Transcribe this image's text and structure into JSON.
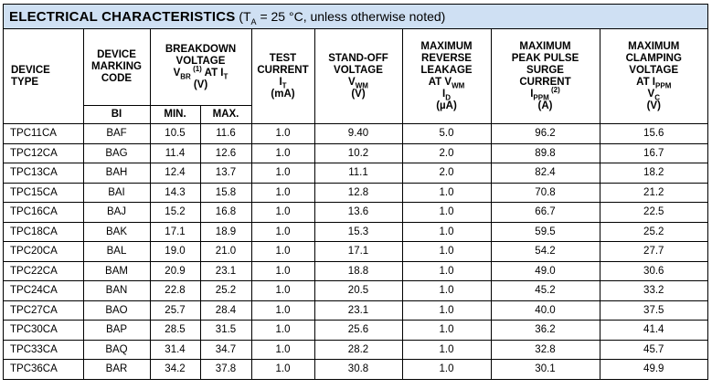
{
  "title": {
    "main": "ELECTRICAL CHARACTERISTICS",
    "condition_open": " (T",
    "condition_sub": "A",
    "condition_rest": " = 25 °C, unless otherwise noted)"
  },
  "headers": {
    "device_type": [
      "DEVICE",
      "TYPE"
    ],
    "marking_code": [
      "DEVICE",
      "MARKING",
      "CODE"
    ],
    "marking_sub": "BI",
    "breakdown": {
      "line1": "BREAKDOWN",
      "line2": "VOLTAGE",
      "v": "V",
      "v_sub": "BR",
      "v_sup": " (1)",
      "at": " AT I",
      "at_sub": "T",
      "unit": "(V)",
      "min": "MIN.",
      "max": "MAX."
    },
    "test_current": {
      "line1": "TEST",
      "line2": "CURRENT",
      "sym": "I",
      "sym_sub": "T",
      "unit": "(mA)"
    },
    "standoff": {
      "line1": "STAND-OFF",
      "line2": "VOLTAGE",
      "sym": "V",
      "sym_sub": "WM",
      "unit": "(V)"
    },
    "leakage": {
      "line1": "MAXIMUM",
      "line2": "REVERSE",
      "line3": "LEAKAGE",
      "at": "AT V",
      "at_sub": "WM",
      "sym": "I",
      "sym_sub": "D",
      "unit": "(µA)"
    },
    "surge": {
      "line1": "MAXIMUM",
      "line2": "PEAK PULSE",
      "line3": "SURGE",
      "line4": "CURRENT",
      "sym": "I",
      "sym_sub": "PPM",
      "sym_sup": " (2)",
      "unit": "(A)"
    },
    "clamping": {
      "line1": "MAXIMUM",
      "line2": "CLAMPING",
      "line3": "VOLTAGE",
      "at": "AT I",
      "at_sub": "PPM",
      "sym": "V",
      "sym_sub": "C",
      "unit": "(V)"
    }
  },
  "rows": [
    [
      "TPC11CA",
      "BAF",
      "10.5",
      "11.6",
      "1.0",
      "9.40",
      "5.0",
      "96.2",
      "15.6"
    ],
    [
      "TPC12CA",
      "BAG",
      "11.4",
      "12.6",
      "1.0",
      "10.2",
      "2.0",
      "89.8",
      "16.7"
    ],
    [
      "TPC13CA",
      "BAH",
      "12.4",
      "13.7",
      "1.0",
      "11.1",
      "2.0",
      "82.4",
      "18.2"
    ],
    [
      "TPC15CA",
      "BAI",
      "14.3",
      "15.8",
      "1.0",
      "12.8",
      "1.0",
      "70.8",
      "21.2"
    ],
    [
      "TPC16CA",
      "BAJ",
      "15.2",
      "16.8",
      "1.0",
      "13.6",
      "1.0",
      "66.7",
      "22.5"
    ],
    [
      "TPC18CA",
      "BAK",
      "17.1",
      "18.9",
      "1.0",
      "15.3",
      "1.0",
      "59.5",
      "25.2"
    ],
    [
      "TPC20CA",
      "BAL",
      "19.0",
      "21.0",
      "1.0",
      "17.1",
      "1.0",
      "54.2",
      "27.7"
    ],
    [
      "TPC22CA",
      "BAM",
      "20.9",
      "23.1",
      "1.0",
      "18.8",
      "1.0",
      "49.0",
      "30.6"
    ],
    [
      "TPC24CA",
      "BAN",
      "22.8",
      "25.2",
      "1.0",
      "20.5",
      "1.0",
      "45.2",
      "33.2"
    ],
    [
      "TPC27CA",
      "BAO",
      "25.7",
      "28.4",
      "1.0",
      "23.1",
      "1.0",
      "40.0",
      "37.5"
    ],
    [
      "TPC30CA",
      "BAP",
      "28.5",
      "31.5",
      "1.0",
      "25.6",
      "1.0",
      "36.2",
      "41.4"
    ],
    [
      "TPC33CA",
      "BAQ",
      "31.4",
      "34.7",
      "1.0",
      "28.2",
      "1.0",
      "32.8",
      "45.7"
    ],
    [
      "TPC36CA",
      "BAR",
      "34.2",
      "37.8",
      "1.0",
      "30.8",
      "1.0",
      "30.1",
      "49.9"
    ]
  ],
  "colors": {
    "title_background": "#cfe0f3"
  }
}
